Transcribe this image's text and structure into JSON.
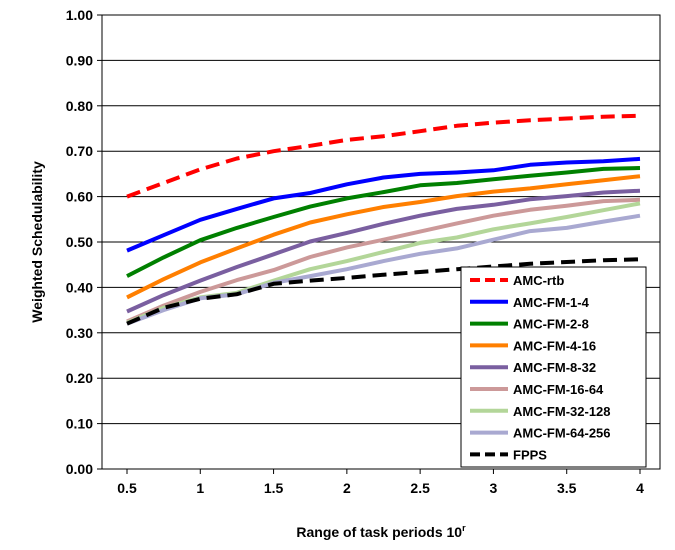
{
  "chart_data": {
    "type": "line",
    "xlabel": "Range of task periods 10",
    "xlabel_sup": "r",
    "ylabel": "Weighted Schedulability",
    "ylim": [
      0,
      1
    ],
    "xlim": [
      0.5,
      4
    ],
    "x_ticks": [
      "0.5",
      "1",
      "1.5",
      "2",
      "2.5",
      "3",
      "3.5",
      "4"
    ],
    "y_ticks": [
      "0.00",
      "0.10",
      "0.20",
      "0.30",
      "0.40",
      "0.50",
      "0.60",
      "0.70",
      "0.80",
      "0.90",
      "1.00"
    ],
    "grid": "horizontal",
    "legend_position": "bottom-right",
    "x": [
      0.5,
      0.75,
      1.0,
      1.25,
      1.5,
      1.75,
      2.0,
      2.25,
      2.5,
      2.75,
      3.0,
      3.25,
      3.5,
      3.75,
      4.0
    ],
    "series": [
      {
        "name": "AMC-rtb",
        "color": "#ff0000",
        "dash": true,
        "values": [
          0.6,
          0.63,
          0.66,
          0.684,
          0.7,
          0.712,
          0.725,
          0.733,
          0.744,
          0.756,
          0.763,
          0.768,
          0.772,
          0.776,
          0.778
        ]
      },
      {
        "name": "AMC-FM-1-4",
        "color": "#0000ff",
        "dash": false,
        "values": [
          0.481,
          0.515,
          0.549,
          0.573,
          0.596,
          0.608,
          0.627,
          0.642,
          0.65,
          0.653,
          0.658,
          0.67,
          0.675,
          0.678,
          0.683
        ]
      },
      {
        "name": "AMC-FM-2-8",
        "color": "#008000",
        "dash": false,
        "values": [
          0.425,
          0.466,
          0.504,
          0.531,
          0.555,
          0.578,
          0.596,
          0.61,
          0.625,
          0.63,
          0.638,
          0.646,
          0.653,
          0.661,
          0.663
        ]
      },
      {
        "name": "AMC-FM-4-16",
        "color": "#ff7f00",
        "dash": false,
        "values": [
          0.378,
          0.418,
          0.455,
          0.486,
          0.516,
          0.543,
          0.561,
          0.577,
          0.588,
          0.601,
          0.611,
          0.618,
          0.627,
          0.636,
          0.645
        ]
      },
      {
        "name": "AMC-FM-8-32",
        "color": "#7a5fa0",
        "dash": false,
        "values": [
          0.347,
          0.383,
          0.415,
          0.445,
          0.473,
          0.501,
          0.52,
          0.54,
          0.558,
          0.573,
          0.582,
          0.594,
          0.601,
          0.609,
          0.613
        ]
      },
      {
        "name": "AMC-FM-16-64",
        "color": "#cc9999",
        "dash": false,
        "values": [
          0.325,
          0.36,
          0.39,
          0.416,
          0.438,
          0.467,
          0.488,
          0.505,
          0.523,
          0.541,
          0.558,
          0.571,
          0.58,
          0.59,
          0.593
        ]
      },
      {
        "name": "AMC-FM-32-128",
        "color": "#b3d699",
        "dash": false,
        "values": [
          0.322,
          0.355,
          0.378,
          0.388,
          0.415,
          0.44,
          0.458,
          0.478,
          0.498,
          0.51,
          0.528,
          0.541,
          0.555,
          0.57,
          0.585
        ]
      },
      {
        "name": "AMC-FM-64-256",
        "color": "#a9a9d1",
        "dash": false,
        "values": [
          0.32,
          0.35,
          0.376,
          0.385,
          0.41,
          0.425,
          0.44,
          0.458,
          0.474,
          0.486,
          0.505,
          0.524,
          0.531,
          0.545,
          0.558
        ]
      },
      {
        "name": "FPPS",
        "color": "#000000",
        "dash": true,
        "values": [
          0.32,
          0.355,
          0.375,
          0.385,
          0.408,
          0.415,
          0.421,
          0.428,
          0.434,
          0.44,
          0.446,
          0.452,
          0.456,
          0.46,
          0.462
        ]
      }
    ]
  }
}
